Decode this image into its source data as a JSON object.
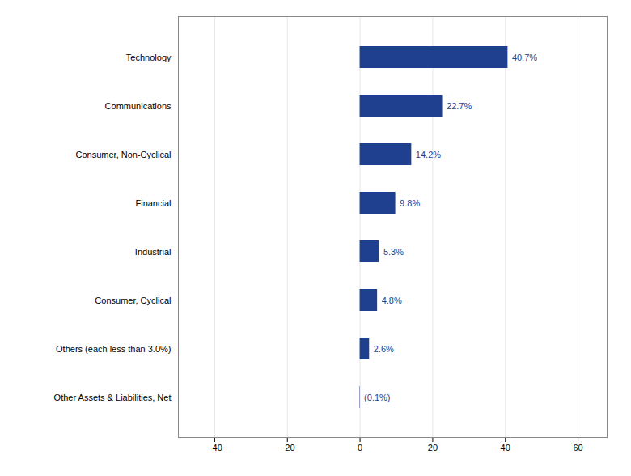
{
  "chart_data": {
    "type": "bar",
    "orientation": "horizontal",
    "categories": [
      "Other Assets & Liabilities, Net",
      "Others (each less than 3.0%)",
      "Consumer, Cyclical",
      "Industrial",
      "Financial",
      "Consumer, Non-Cyclical",
      "Communications",
      "Technology"
    ],
    "values": [
      -0.1,
      2.6,
      4.8,
      5.3,
      9.8,
      14.2,
      22.7,
      40.7
    ],
    "value_labels": [
      "(0.1%)",
      "2.6%",
      "4.8%",
      "5.3%",
      "9.8%",
      "14.2%",
      "22.7%",
      "40.7%"
    ],
    "data_labels": true,
    "color": "#1F3F8F",
    "xlim": [
      -50,
      68
    ],
    "xticks": [
      -40,
      -20,
      0,
      20,
      40,
      60
    ],
    "grid": true
  }
}
